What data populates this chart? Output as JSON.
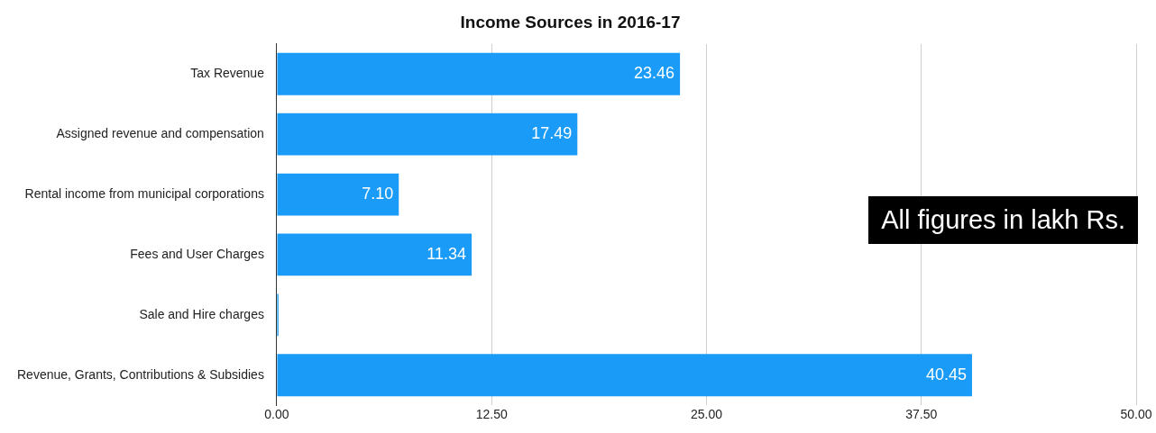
{
  "chart_data": {
    "type": "bar",
    "orientation": "horizontal",
    "title": "Income Sources in 2016-17",
    "categories": [
      "Tax Revenue",
      "Assigned revenue and compensation",
      "Rental income from municipal corporations",
      "Fees and User Charges",
      "Sale and Hire charges",
      "Revenue, Grants, Contributions & Subsidies"
    ],
    "values": [
      23.46,
      17.49,
      7.1,
      11.34,
      0.1,
      40.45
    ],
    "value_labels": [
      "23.46",
      "17.49",
      "7.10",
      "11.34",
      null,
      "40.45"
    ],
    "color": "#1a9bf7",
    "xlim": [
      0,
      50
    ],
    "xticks": [
      {
        "value": 0,
        "label": "0.00"
      },
      {
        "value": 12.5,
        "label": "12.50"
      },
      {
        "value": 25,
        "label": "25.00"
      },
      {
        "value": 37.5,
        "label": "37.50"
      },
      {
        "value": 50,
        "label": "50.00"
      }
    ],
    "grid": "x",
    "annotations": [
      "All figures in lakh Rs."
    ]
  }
}
